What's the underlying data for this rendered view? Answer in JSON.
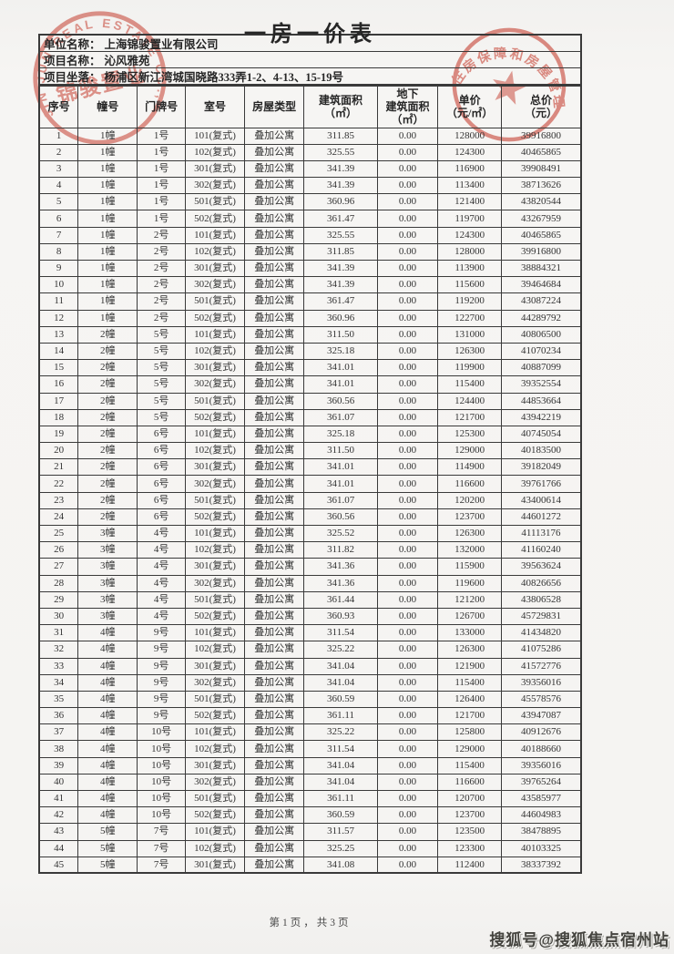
{
  "page": {
    "title": "一房一价表",
    "footer_page_indicator": "第1页，共3页",
    "watermark": "搜狐号@搜狐焦点宿州站"
  },
  "info": {
    "rows": [
      {
        "label": "单位名称：",
        "value": "上海锦骏置业有限公司"
      },
      {
        "label": "项目名称：",
        "value": "沁风雅苑"
      },
      {
        "label": "项目坐落：",
        "value": "杨浦区新江湾城国晓路333弄1-2、4-13、15-19号"
      }
    ]
  },
  "table": {
    "headers": [
      {
        "lines": [
          "序号"
        ]
      },
      {
        "lines": [
          "幢号"
        ]
      },
      {
        "lines": [
          "门牌号"
        ]
      },
      {
        "lines": [
          "室号"
        ]
      },
      {
        "lines": [
          "房屋类型"
        ]
      },
      {
        "lines": [
          "建筑面积（㎡）"
        ]
      },
      {
        "lines": [
          "地下",
          "建筑面积",
          "（㎡）"
        ]
      },
      {
        "lines": [
          "单价",
          "（元/㎡）"
        ]
      },
      {
        "lines": [
          "总价",
          "（元）"
        ]
      }
    ],
    "rows": [
      [
        "1",
        "1幢",
        "1号",
        "101(复式)",
        "叠加公寓",
        "311.85",
        "0.00",
        "128000",
        "39916800"
      ],
      [
        "2",
        "1幢",
        "1号",
        "102(复式)",
        "叠加公寓",
        "325.55",
        "0.00",
        "124300",
        "40465865"
      ],
      [
        "3",
        "1幢",
        "1号",
        "301(复式)",
        "叠加公寓",
        "341.39",
        "0.00",
        "116900",
        "39908491"
      ],
      [
        "4",
        "1幢",
        "1号",
        "302(复式)",
        "叠加公寓",
        "341.39",
        "0.00",
        "113400",
        "38713626"
      ],
      [
        "5",
        "1幢",
        "1号",
        "501(复式)",
        "叠加公寓",
        "360.96",
        "0.00",
        "121400",
        "43820544"
      ],
      [
        "6",
        "1幢",
        "1号",
        "502(复式)",
        "叠加公寓",
        "361.47",
        "0.00",
        "119700",
        "43267959"
      ],
      [
        "7",
        "1幢",
        "2号",
        "101(复式)",
        "叠加公寓",
        "325.55",
        "0.00",
        "124300",
        "40465865"
      ],
      [
        "8",
        "1幢",
        "2号",
        "102(复式)",
        "叠加公寓",
        "311.85",
        "0.00",
        "128000",
        "39916800"
      ],
      [
        "9",
        "1幢",
        "2号",
        "301(复式)",
        "叠加公寓",
        "341.39",
        "0.00",
        "113900",
        "38884321"
      ],
      [
        "10",
        "1幢",
        "2号",
        "302(复式)",
        "叠加公寓",
        "341.39",
        "0.00",
        "115600",
        "39464684"
      ],
      [
        "11",
        "1幢",
        "2号",
        "501(复式)",
        "叠加公寓",
        "361.47",
        "0.00",
        "119200",
        "43087224"
      ],
      [
        "12",
        "1幢",
        "2号",
        "502(复式)",
        "叠加公寓",
        "360.96",
        "0.00",
        "122700",
        "44289792"
      ],
      [
        "13",
        "2幢",
        "5号",
        "101(复式)",
        "叠加公寓",
        "311.50",
        "0.00",
        "131000",
        "40806500"
      ],
      [
        "14",
        "2幢",
        "5号",
        "102(复式)",
        "叠加公寓",
        "325.18",
        "0.00",
        "126300",
        "41070234"
      ],
      [
        "15",
        "2幢",
        "5号",
        "301(复式)",
        "叠加公寓",
        "341.01",
        "0.00",
        "119900",
        "40887099"
      ],
      [
        "16",
        "2幢",
        "5号",
        "302(复式)",
        "叠加公寓",
        "341.01",
        "0.00",
        "115400",
        "39352554"
      ],
      [
        "17",
        "2幢",
        "5号",
        "501(复式)",
        "叠加公寓",
        "360.56",
        "0.00",
        "124400",
        "44853664"
      ],
      [
        "18",
        "2幢",
        "5号",
        "502(复式)",
        "叠加公寓",
        "361.07",
        "0.00",
        "121700",
        "43942219"
      ],
      [
        "19",
        "2幢",
        "6号",
        "101(复式)",
        "叠加公寓",
        "325.18",
        "0.00",
        "125300",
        "40745054"
      ],
      [
        "20",
        "2幢",
        "6号",
        "102(复式)",
        "叠加公寓",
        "311.50",
        "0.00",
        "129000",
        "40183500"
      ],
      [
        "21",
        "2幢",
        "6号",
        "301(复式)",
        "叠加公寓",
        "341.01",
        "0.00",
        "114900",
        "39182049"
      ],
      [
        "22",
        "2幢",
        "6号",
        "302(复式)",
        "叠加公寓",
        "341.01",
        "0.00",
        "116600",
        "39761766"
      ],
      [
        "23",
        "2幢",
        "6号",
        "501(复式)",
        "叠加公寓",
        "361.07",
        "0.00",
        "120200",
        "43400614"
      ],
      [
        "24",
        "2幢",
        "6号",
        "502(复式)",
        "叠加公寓",
        "360.56",
        "0.00",
        "123700",
        "44601272"
      ],
      [
        "25",
        "3幢",
        "4号",
        "101(复式)",
        "叠加公寓",
        "325.52",
        "0.00",
        "126300",
        "41113176"
      ],
      [
        "26",
        "3幢",
        "4号",
        "102(复式)",
        "叠加公寓",
        "311.82",
        "0.00",
        "132000",
        "41160240"
      ],
      [
        "27",
        "3幢",
        "4号",
        "301(复式)",
        "叠加公寓",
        "341.36",
        "0.00",
        "115900",
        "39563624"
      ],
      [
        "28",
        "3幢",
        "4号",
        "302(复式)",
        "叠加公寓",
        "341.36",
        "0.00",
        "119600",
        "40826656"
      ],
      [
        "29",
        "3幢",
        "4号",
        "501(复式)",
        "叠加公寓",
        "361.44",
        "0.00",
        "121200",
        "43806528"
      ],
      [
        "30",
        "3幢",
        "4号",
        "502(复式)",
        "叠加公寓",
        "360.93",
        "0.00",
        "126700",
        "45729831"
      ],
      [
        "31",
        "4幢",
        "9号",
        "101(复式)",
        "叠加公寓",
        "311.54",
        "0.00",
        "133000",
        "41434820"
      ],
      [
        "32",
        "4幢",
        "9号",
        "102(复式)",
        "叠加公寓",
        "325.22",
        "0.00",
        "126300",
        "41075286"
      ],
      [
        "33",
        "4幢",
        "9号",
        "301(复式)",
        "叠加公寓",
        "341.04",
        "0.00",
        "121900",
        "41572776"
      ],
      [
        "34",
        "4幢",
        "9号",
        "302(复式)",
        "叠加公寓",
        "341.04",
        "0.00",
        "115400",
        "39356016"
      ],
      [
        "35",
        "4幢",
        "9号",
        "501(复式)",
        "叠加公寓",
        "360.59",
        "0.00",
        "126400",
        "45578576"
      ],
      [
        "36",
        "4幢",
        "9号",
        "502(复式)",
        "叠加公寓",
        "361.11",
        "0.00",
        "121700",
        "43947087"
      ],
      [
        "37",
        "4幢",
        "10号",
        "101(复式)",
        "叠加公寓",
        "325.22",
        "0.00",
        "125800",
        "40912676"
      ],
      [
        "38",
        "4幢",
        "10号",
        "102(复式)",
        "叠加公寓",
        "311.54",
        "0.00",
        "129000",
        "40188660"
      ],
      [
        "39",
        "4幢",
        "10号",
        "301(复式)",
        "叠加公寓",
        "341.04",
        "0.00",
        "115400",
        "39356016"
      ],
      [
        "40",
        "4幢",
        "10号",
        "302(复式)",
        "叠加公寓",
        "341.04",
        "0.00",
        "116600",
        "39765264"
      ],
      [
        "41",
        "4幢",
        "10号",
        "501(复式)",
        "叠加公寓",
        "361.11",
        "0.00",
        "120700",
        "43585977"
      ],
      [
        "42",
        "4幢",
        "10号",
        "502(复式)",
        "叠加公寓",
        "360.59",
        "0.00",
        "123700",
        "44604983"
      ],
      [
        "43",
        "5幢",
        "7号",
        "101(复式)",
        "叠加公寓",
        "311.57",
        "0.00",
        "123500",
        "38478895"
      ],
      [
        "44",
        "5幢",
        "7号",
        "102(复式)",
        "叠加公寓",
        "325.25",
        "0.00",
        "123300",
        "40103325"
      ],
      [
        "45",
        "5幢",
        "7号",
        "301(复式)",
        "叠加公寓",
        "341.08",
        "0.00",
        "112400",
        "38337392"
      ]
    ]
  },
  "seals": {
    "company": {
      "ring_text": "JIN JUN REAL ESTATE CO., LTD",
      "inner_text": "锦骏置业",
      "color": "#c8483a"
    },
    "government": {
      "ring_text": "住房保障和房屋管理局",
      "color": "#c8483a"
    }
  },
  "colors": {
    "seal_red": "#c8483a",
    "paper": "#f5f4f2",
    "ink": "#2e2e2e"
  }
}
